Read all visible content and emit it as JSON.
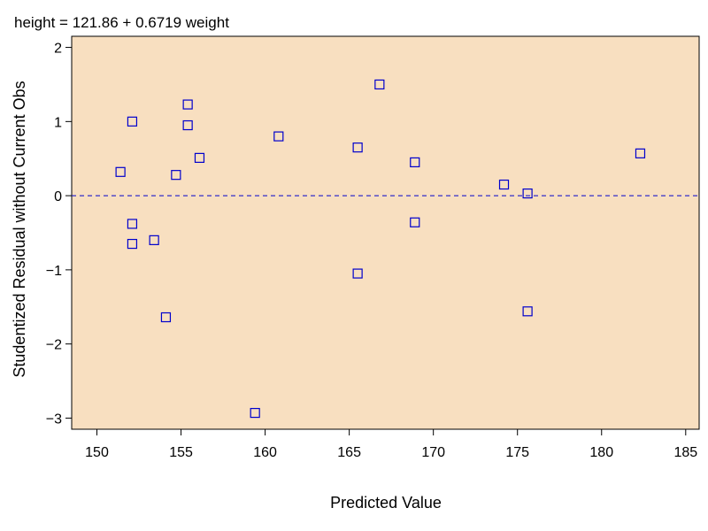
{
  "chart_data": {
    "type": "scatter",
    "title": "height =  121.86  + 0.6719 weight",
    "xlabel": "Predicted Value",
    "ylabel": "Studentized  Residual  without  Current  Obs",
    "xlim": [
      148.5,
      185.8
    ],
    "ylim": [
      -3.15,
      2.15
    ],
    "xticks": [
      150,
      155,
      160,
      165,
      170,
      175,
      180,
      185
    ],
    "yticks": [
      -3,
      -2,
      -1,
      0,
      1,
      2
    ],
    "ytick_labels": [
      "−3",
      "−2",
      "−1",
      "0",
      "1",
      "2"
    ],
    "reference_line": {
      "y": 0,
      "style": "dashed",
      "color": "#0000cc"
    },
    "plot_background": "#f8dfc0",
    "marker": {
      "shape": "square",
      "color": "#0000cc"
    },
    "grid": false,
    "points": [
      {
        "x": 151.4,
        "y": 0.32
      },
      {
        "x": 152.1,
        "y": 1.0
      },
      {
        "x": 152.1,
        "y": -0.38
      },
      {
        "x": 152.1,
        "y": -0.65
      },
      {
        "x": 153.4,
        "y": -0.6
      },
      {
        "x": 154.1,
        "y": -1.64
      },
      {
        "x": 154.7,
        "y": 0.28
      },
      {
        "x": 155.4,
        "y": 1.23
      },
      {
        "x": 155.4,
        "y": 0.95
      },
      {
        "x": 156.1,
        "y": 0.51
      },
      {
        "x": 159.4,
        "y": -2.93
      },
      {
        "x": 160.8,
        "y": 0.8
      },
      {
        "x": 165.5,
        "y": 0.65
      },
      {
        "x": 165.5,
        "y": -1.05
      },
      {
        "x": 166.8,
        "y": 1.5
      },
      {
        "x": 168.9,
        "y": 0.45
      },
      {
        "x": 168.9,
        "y": -0.36
      },
      {
        "x": 174.2,
        "y": 0.15
      },
      {
        "x": 175.6,
        "y": 0.03
      },
      {
        "x": 175.6,
        "y": -1.56
      },
      {
        "x": 182.3,
        "y": 0.57
      }
    ]
  }
}
